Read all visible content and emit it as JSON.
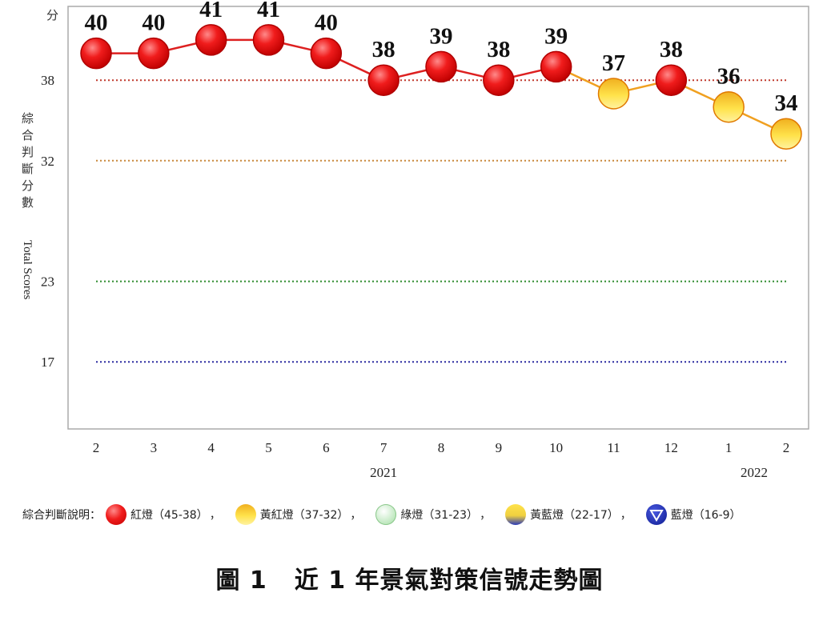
{
  "chart_data": {
    "type": "line",
    "ylabel_zh": "綜合判斷分數",
    "ylabel_en": "Total Scores",
    "y_unit_label": "分",
    "yticks": [
      38,
      32,
      23,
      17
    ],
    "ylim": [
      12,
      43.5
    ],
    "reference_lines": [
      {
        "value": 38,
        "color": "#c0392b"
      },
      {
        "value": 32,
        "color": "#c8873a"
      },
      {
        "value": 23,
        "color": "#2e8b2e"
      },
      {
        "value": 17,
        "color": "#2a2aa0"
      }
    ],
    "categories": [
      "2",
      "3",
      "4",
      "5",
      "6",
      "7",
      "8",
      "9",
      "10",
      "11",
      "12",
      "1",
      "2"
    ],
    "year_labels": [
      {
        "label": "2021",
        "category_index": 5
      },
      {
        "label": "2022",
        "category_index": 12
      }
    ],
    "values": [
      40,
      40,
      41,
      41,
      40,
      38,
      39,
      38,
      39,
      37,
      38,
      36,
      34
    ],
    "signals": [
      "red",
      "red",
      "red",
      "red",
      "red",
      "red",
      "red",
      "red",
      "red",
      "yellow-red",
      "red",
      "yellow-red",
      "yellow-red"
    ],
    "grid": false
  },
  "signal_colors": {
    "red": "#e61e1e",
    "yellow-red": "#f5a623",
    "green": "#c8f0c8",
    "yellow-blue": "#e8d84a",
    "blue": "#1a2aa8"
  },
  "legend": {
    "title": "綜合判斷說明：",
    "separator": "，",
    "items": [
      {
        "key": "red",
        "label": "紅燈（45-38）"
      },
      {
        "key": "yellow-red",
        "label": "黃紅燈（37-32）"
      },
      {
        "key": "green",
        "label": "綠燈（31-23）"
      },
      {
        "key": "yellow-blue",
        "label": "黃藍燈（22-17）"
      },
      {
        "key": "blue",
        "label": "藍燈（16-9）"
      }
    ]
  },
  "caption": {
    "figure": "圖 1",
    "title": "近 1 年景氣對策信號走勢圖"
  }
}
